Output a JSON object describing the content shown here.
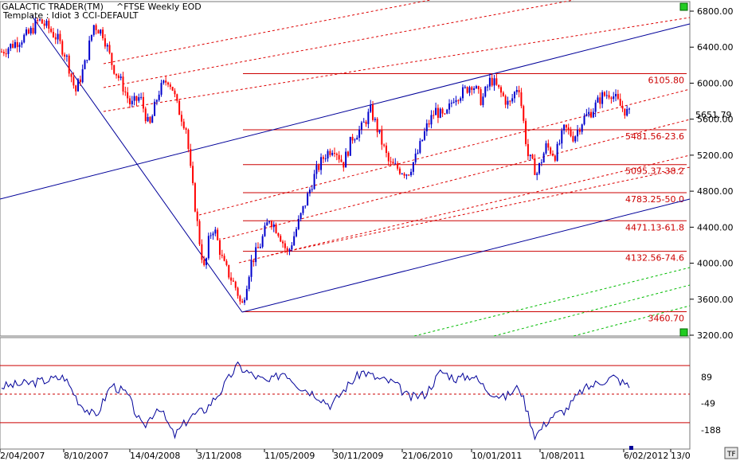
{
  "header": {
    "app": "GALACTIC TRADER(TM)",
    "instrument": "^FTSE Weekly EOD",
    "template": "Template : Idiot 3 CCI-DEFAULT"
  },
  "buttons": {
    "tf_label": "TF"
  },
  "colors": {
    "up_bar": "#0000cc",
    "down_bar": "#ff0000",
    "trend": "#000099",
    "fib_line": "#cc0000",
    "fan_red": "#dd0000",
    "fan_green": "#00bb00",
    "cci_line": "#000099",
    "indicator_marker": "#00cc00"
  },
  "chart_data": {
    "type": "candlestick",
    "price_axis": {
      "ticks": [
        "6800.00",
        "6400.00",
        "6000.00",
        "5600.00",
        "5200.00",
        "4800.00",
        "4400.00",
        "4000.00",
        "3600.00",
        "3200.00"
      ],
      "range": [
        3200,
        6800
      ]
    },
    "last_price": "5651.79",
    "date_axis": [
      "2/04/2007",
      "8/10/2007",
      "14/04/2008",
      "3/11/2008",
      "11/05/2009",
      "30/11/2009",
      "21/06/2010",
      "10/01/2011",
      "1/08/2011",
      "6/02/2012",
      "13/0"
    ],
    "fib_levels": [
      {
        "value": 6105.8,
        "label": "6105.80"
      },
      {
        "value": 5481.56,
        "label": "5481.56-23.6"
      },
      {
        "value": 5095.37,
        "label": "5095.37-38.2"
      },
      {
        "value": 4783.25,
        "label": "4783.25-50.0"
      },
      {
        "value": 4471.13,
        "label": "4471.13-61.8"
      },
      {
        "value": 4132.56,
        "label": "4132.56-74.6"
      },
      {
        "value": 3460.7,
        "label": "3460.70"
      }
    ],
    "price_path": [
      [
        0,
        6350
      ],
      [
        3,
        6450
      ],
      [
        6,
        6550
      ],
      [
        8,
        6700
      ],
      [
        10,
        6620
      ],
      [
        12,
        6500
      ],
      [
        14,
        6300
      ],
      [
        16,
        5900
      ],
      [
        18,
        6200
      ],
      [
        20,
        6650
      ],
      [
        22,
        6550
      ],
      [
        24,
        6200
      ],
      [
        26,
        6000
      ],
      [
        28,
        5750
      ],
      [
        30,
        5850
      ],
      [
        32,
        5500
      ],
      [
        34,
        5900
      ],
      [
        36,
        6050
      ],
      [
        37,
        5950
      ],
      [
        38,
        5750
      ],
      [
        40,
        5500
      ],
      [
        41,
        5000
      ],
      [
        42,
        4600
      ],
      [
        43,
        4200
      ],
      [
        44,
        3900
      ],
      [
        45,
        4300
      ],
      [
        46,
        4400
      ],
      [
        47,
        4200
      ],
      [
        48,
        4000
      ],
      [
        49,
        3900
      ],
      [
        50,
        3800
      ],
      [
        51,
        3700
      ],
      [
        52,
        3500
      ],
      [
        53,
        3750
      ],
      [
        54,
        4000
      ],
      [
        56,
        4200
      ],
      [
        58,
        4500
      ],
      [
        60,
        4350
      ],
      [
        62,
        4100
      ],
      [
        64,
        4400
      ],
      [
        66,
        4700
      ],
      [
        68,
        5000
      ],
      [
        70,
        5200
      ],
      [
        72,
        5300
      ],
      [
        74,
        5100
      ],
      [
        76,
        5400
      ],
      [
        78,
        5500
      ],
      [
        80,
        5700
      ],
      [
        82,
        5400
      ],
      [
        84,
        5100
      ],
      [
        86,
        5050
      ],
      [
        88,
        5000
      ],
      [
        90,
        5200
      ],
      [
        92,
        5500
      ],
      [
        94,
        5700
      ],
      [
        96,
        5600
      ],
      [
        98,
        5850
      ],
      [
        100,
        5900
      ],
      [
        102,
        6000
      ],
      [
        104,
        5800
      ],
      [
        106,
        6050
      ],
      [
        108,
        5900
      ],
      [
        110,
        5750
      ],
      [
        112,
        6000
      ],
      [
        114,
        5200
      ],
      [
        116,
        5000
      ],
      [
        118,
        5300
      ],
      [
        120,
        5200
      ],
      [
        122,
        5500
      ],
      [
        124,
        5400
      ],
      [
        126,
        5600
      ],
      [
        128,
        5700
      ],
      [
        130,
        5850
      ],
      [
        132,
        5900
      ],
      [
        134,
        5750
      ],
      [
        136,
        5651
      ]
    ],
    "cci": {
      "levels": [
        "89",
        "-49",
        "-188"
      ],
      "values": [
        [
          0,
          40
        ],
        [
          4,
          60
        ],
        [
          8,
          90
        ],
        [
          10,
          -50
        ],
        [
          12,
          -120
        ],
        [
          14,
          50
        ],
        [
          16,
          0
        ],
        [
          18,
          -180
        ],
        [
          20,
          -60
        ],
        [
          22,
          -220
        ],
        [
          24,
          -120
        ],
        [
          26,
          -80
        ],
        [
          28,
          20
        ],
        [
          30,
          150
        ],
        [
          32,
          100
        ],
        [
          34,
          60
        ],
        [
          36,
          120
        ],
        [
          38,
          40
        ],
        [
          40,
          0
        ],
        [
          42,
          -60
        ],
        [
          44,
          40
        ],
        [
          46,
          120
        ],
        [
          48,
          80
        ],
        [
          50,
          60
        ],
        [
          52,
          -20
        ],
        [
          54,
          0
        ],
        [
          56,
          120
        ],
        [
          58,
          80
        ],
        [
          60,
          100
        ],
        [
          62,
          20
        ],
        [
          64,
          -20
        ],
        [
          66,
          40
        ],
        [
          68,
          -220
        ],
        [
          70,
          -120
        ],
        [
          72,
          -80
        ],
        [
          74,
          20
        ],
        [
          76,
          60
        ],
        [
          78,
          90
        ],
        [
          80,
          40
        ]
      ]
    }
  }
}
